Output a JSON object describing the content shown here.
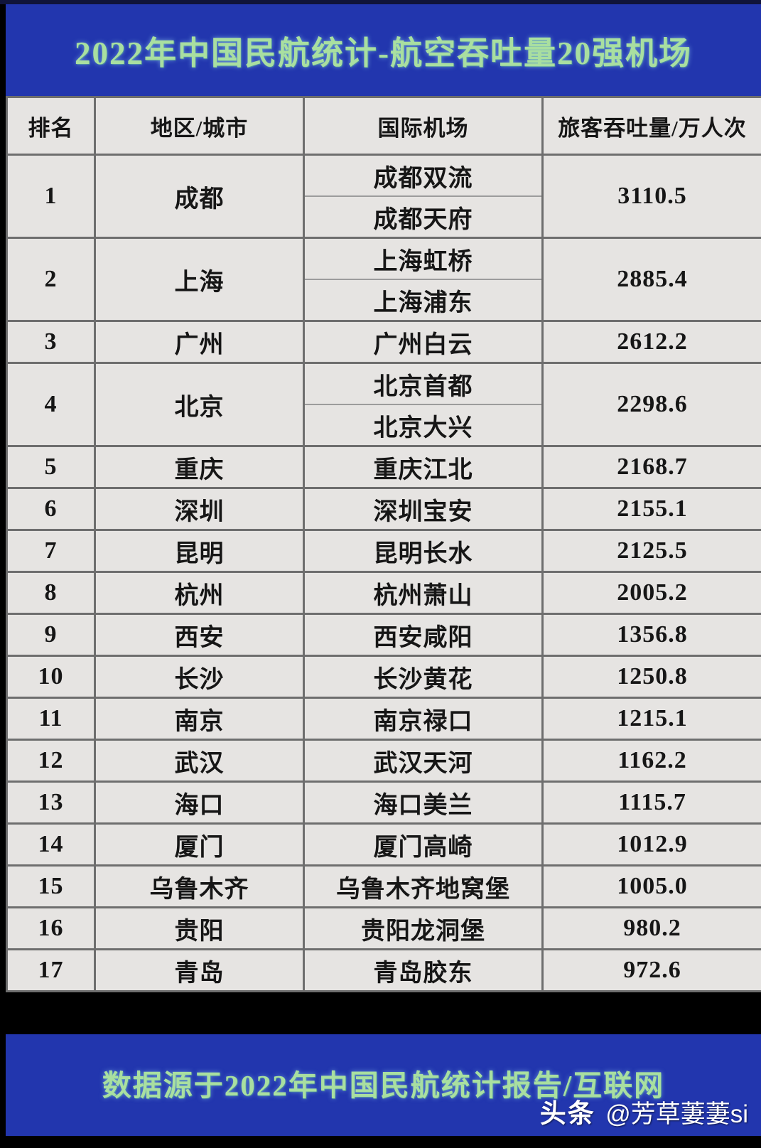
{
  "title": "2022年中国民航统计-航空吞吐量20强机场",
  "colors": {
    "band_blue": "#2236ae",
    "title_green": "#a9dfa0",
    "cell_bg": "#e6e4e2",
    "cell_border": "#6e6e6e",
    "watermark_white": "#ffffff"
  },
  "table": {
    "headers": [
      "排名",
      "地区/城市",
      "国际机场",
      "旅客吞吐量/万人次"
    ],
    "rows": [
      {
        "rank": "1",
        "city": "成都",
        "airports": [
          "成都双流",
          "成都天府"
        ],
        "throughput": "3110.5"
      },
      {
        "rank": "2",
        "city": "上海",
        "airports": [
          "上海虹桥",
          "上海浦东"
        ],
        "throughput": "2885.4"
      },
      {
        "rank": "3",
        "city": "广州",
        "airports": [
          "广州白云"
        ],
        "throughput": "2612.2"
      },
      {
        "rank": "4",
        "city": "北京",
        "airports": [
          "北京首都",
          "北京大兴"
        ],
        "throughput": "2298.6"
      },
      {
        "rank": "5",
        "city": "重庆",
        "airports": [
          "重庆江北"
        ],
        "throughput": "2168.7"
      },
      {
        "rank": "6",
        "city": "深圳",
        "airports": [
          "深圳宝安"
        ],
        "throughput": "2155.1"
      },
      {
        "rank": "7",
        "city": "昆明",
        "airports": [
          "昆明长水"
        ],
        "throughput": "2125.5"
      },
      {
        "rank": "8",
        "city": "杭州",
        "airports": [
          "杭州萧山"
        ],
        "throughput": "2005.2"
      },
      {
        "rank": "9",
        "city": "西安",
        "airports": [
          "西安咸阳"
        ],
        "throughput": "1356.8"
      },
      {
        "rank": "10",
        "city": "长沙",
        "airports": [
          "长沙黄花"
        ],
        "throughput": "1250.8"
      },
      {
        "rank": "11",
        "city": "南京",
        "airports": [
          "南京禄口"
        ],
        "throughput": "1215.1"
      },
      {
        "rank": "12",
        "city": "武汉",
        "airports": [
          "武汉天河"
        ],
        "throughput": "1162.2"
      },
      {
        "rank": "13",
        "city": "海口",
        "airports": [
          "海口美兰"
        ],
        "throughput": "1115.7"
      },
      {
        "rank": "14",
        "city": "厦门",
        "airports": [
          "厦门高崎"
        ],
        "throughput": "1012.9"
      },
      {
        "rank": "15",
        "city": "乌鲁木齐",
        "airports": [
          "乌鲁木齐地窝堡"
        ],
        "throughput": "1005.0"
      },
      {
        "rank": "16",
        "city": "贵阳",
        "airports": [
          "贵阳龙洞堡"
        ],
        "throughput": "980.2"
      },
      {
        "rank": "17",
        "city": "青岛",
        "airports": [
          "青岛胶东"
        ],
        "throughput": "972.6"
      }
    ]
  },
  "footer": {
    "source_text": "数据源于2022年中国民航统计报告/互联网"
  },
  "watermark": {
    "brand": "头条",
    "handle": "@芳草萋萋si"
  },
  "chart_data": {
    "type": "table",
    "title": "2022年中国民航统计-航空吞吐量20强机场",
    "columns": [
      "排名",
      "地区/城市",
      "国际机场",
      "旅客吞吐量/万人次"
    ],
    "rows": [
      [
        1,
        "成都",
        "成都双流/成都天府",
        3110.5
      ],
      [
        2,
        "上海",
        "上海虹桥/上海浦东",
        2885.4
      ],
      [
        3,
        "广州",
        "广州白云",
        2612.2
      ],
      [
        4,
        "北京",
        "北京首都/北京大兴",
        2298.6
      ],
      [
        5,
        "重庆",
        "重庆江北",
        2168.7
      ],
      [
        6,
        "深圳",
        "深圳宝安",
        2155.1
      ],
      [
        7,
        "昆明",
        "昆明长水",
        2125.5
      ],
      [
        8,
        "杭州",
        "杭州萧山",
        2005.2
      ],
      [
        9,
        "西安",
        "西安咸阳",
        1356.8
      ],
      [
        10,
        "长沙",
        "长沙黄花",
        1250.8
      ],
      [
        11,
        "南京",
        "南京禄口",
        1215.1
      ],
      [
        12,
        "武汉",
        "武汉天河",
        1162.2
      ],
      [
        13,
        "海口",
        "海口美兰",
        1115.7
      ],
      [
        14,
        "厦门",
        "厦门高崎",
        1012.9
      ],
      [
        15,
        "乌鲁木齐",
        "乌鲁木齐地窝堡",
        1005.0
      ],
      [
        16,
        "贵阳",
        "贵阳龙洞堡",
        980.2
      ],
      [
        17,
        "青岛",
        "青岛胶东",
        972.6
      ]
    ],
    "source": "数据源于2022年中国民航统计报告/互联网"
  }
}
